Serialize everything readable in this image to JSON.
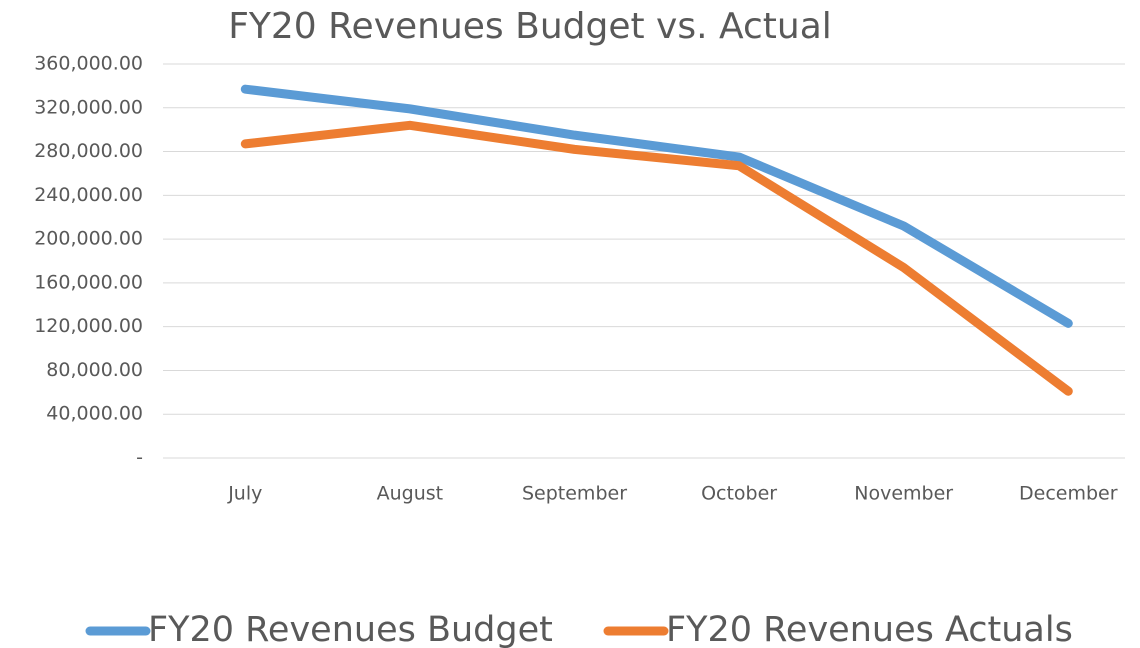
{
  "chart_data": {
    "type": "line",
    "title": "FY20 Revenues Budget vs. Actual",
    "categories": [
      "July",
      "August",
      "September",
      "October",
      "November",
      "December"
    ],
    "series": [
      {
        "name": "FY20 Revenues Budget",
        "color": "#5b9bd5",
        "values": [
          337000,
          319000,
          295000,
          275000,
          212000,
          123000
        ]
      },
      {
        "name": "FY20 Revenues Actuals",
        "color": "#ed7d31",
        "values": [
          287000,
          304000,
          282000,
          267000,
          174000,
          61000
        ]
      }
    ],
    "ylim": [
      0,
      360000
    ],
    "yticks": [
      {
        "value": 0,
        "label": "-"
      },
      {
        "value": 40000,
        "label": "40,000.00"
      },
      {
        "value": 80000,
        "label": "80,000.00"
      },
      {
        "value": 120000,
        "label": "120,000.00"
      },
      {
        "value": 160000,
        "label": "160,000.00"
      },
      {
        "value": 200000,
        "label": "200,000.00"
      },
      {
        "value": 240000,
        "label": "240,000.00"
      },
      {
        "value": 280000,
        "label": "280,000.00"
      },
      {
        "value": 320000,
        "label": "320,000.00"
      },
      {
        "value": 360000,
        "label": "360,000.00"
      }
    ],
    "grid": true,
    "legend": "bottom"
  }
}
